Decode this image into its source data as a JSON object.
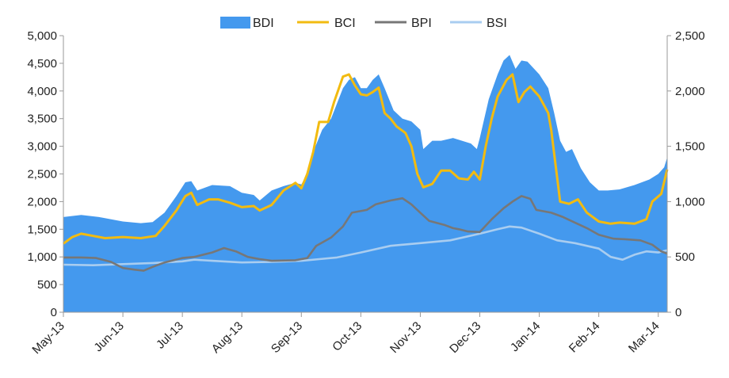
{
  "chart_data": {
    "type": "area",
    "legend": {
      "placement": "top-center",
      "items": [
        {
          "key": "BDI",
          "label": "BDI",
          "kind": "area",
          "color": "#4499ee"
        },
        {
          "key": "BCI",
          "label": "BCI",
          "kind": "line",
          "color": "#f2bb10"
        },
        {
          "key": "BPI",
          "label": "BPI",
          "kind": "line",
          "color": "#777777"
        },
        {
          "key": "BSI",
          "label": "BSI",
          "kind": "line",
          "color": "#a9cdf0"
        }
      ]
    },
    "x_axis": {
      "range": [
        0,
        10.15
      ],
      "ticks": [
        {
          "pos": 0,
          "label": "May-13"
        },
        {
          "pos": 1,
          "label": "Jun-13"
        },
        {
          "pos": 2,
          "label": "Jul-13"
        },
        {
          "pos": 3,
          "label": "Aug-13"
        },
        {
          "pos": 4,
          "label": "Sep-13"
        },
        {
          "pos": 5,
          "label": "Oct-13"
        },
        {
          "pos": 6,
          "label": "Nov-13"
        },
        {
          "pos": 7,
          "label": "Dec-13"
        },
        {
          "pos": 8,
          "label": "Jan-14"
        },
        {
          "pos": 9,
          "label": "Feb-14"
        },
        {
          "pos": 10,
          "label": "Mar-14"
        }
      ]
    },
    "y_left": {
      "range": [
        0,
        5000
      ],
      "ticks": [
        0,
        500,
        1000,
        1500,
        2000,
        2500,
        3000,
        3500,
        4000,
        4500,
        5000
      ],
      "tick_labels": [
        "0",
        "500",
        "1,000",
        "1,500",
        "2,000",
        "2,500",
        "3,000",
        "3,500",
        "4,000",
        "4,500",
        "5,000"
      ]
    },
    "y_right": {
      "range": [
        0,
        2500
      ],
      "ticks": [
        0,
        500,
        1000,
        1500,
        2000,
        2500
      ],
      "tick_labels": [
        "0",
        "500",
        "1,000",
        "1,500",
        "2,000",
        "2,500"
      ]
    },
    "series": [
      {
        "name": "BDI",
        "axis": "left",
        "points": [
          [
            0,
            1720
          ],
          [
            0.3,
            1760
          ],
          [
            0.6,
            1720
          ],
          [
            1,
            1640
          ],
          [
            1.3,
            1610
          ],
          [
            1.5,
            1630
          ],
          [
            1.7,
            1800
          ],
          [
            1.9,
            2100
          ],
          [
            2.05,
            2350
          ],
          [
            2.15,
            2370
          ],
          [
            2.25,
            2200
          ],
          [
            2.5,
            2300
          ],
          [
            2.8,
            2280
          ],
          [
            3,
            2160
          ],
          [
            3.2,
            2120
          ],
          [
            3.3,
            2020
          ],
          [
            3.5,
            2200
          ],
          [
            3.7,
            2280
          ],
          [
            3.9,
            2340
          ],
          [
            4,
            2310
          ],
          [
            4.1,
            2500
          ],
          [
            4.2,
            2900
          ],
          [
            4.35,
            3300
          ],
          [
            4.5,
            3500
          ],
          [
            4.7,
            4050
          ],
          [
            4.8,
            4200
          ],
          [
            4.9,
            4250
          ],
          [
            5,
            4050
          ],
          [
            5.1,
            4050
          ],
          [
            5.2,
            4200
          ],
          [
            5.3,
            4300
          ],
          [
            5.4,
            4050
          ],
          [
            5.55,
            3650
          ],
          [
            5.7,
            3500
          ],
          [
            5.85,
            3450
          ],
          [
            6,
            3300
          ],
          [
            6.05,
            2950
          ],
          [
            6.2,
            3100
          ],
          [
            6.35,
            3100
          ],
          [
            6.55,
            3150
          ],
          [
            6.7,
            3100
          ],
          [
            6.85,
            3050
          ],
          [
            6.95,
            2950
          ],
          [
            7,
            3150
          ],
          [
            7.15,
            3850
          ],
          [
            7.3,
            4300
          ],
          [
            7.4,
            4550
          ],
          [
            7.5,
            4650
          ],
          [
            7.6,
            4400
          ],
          [
            7.7,
            4550
          ],
          [
            7.8,
            4530
          ],
          [
            8,
            4300
          ],
          [
            8.15,
            4050
          ],
          [
            8.25,
            3600
          ],
          [
            8.35,
            3100
          ],
          [
            8.45,
            2900
          ],
          [
            8.55,
            2950
          ],
          [
            8.7,
            2600
          ],
          [
            8.85,
            2350
          ],
          [
            9,
            2200
          ],
          [
            9.15,
            2200
          ],
          [
            9.35,
            2220
          ],
          [
            9.6,
            2300
          ],
          [
            9.85,
            2400
          ],
          [
            10,
            2500
          ],
          [
            10.1,
            2620
          ],
          [
            10.15,
            2800
          ]
        ]
      },
      {
        "name": "BCI",
        "axis": "right",
        "points": [
          [
            0,
            620
          ],
          [
            0.15,
            680
          ],
          [
            0.3,
            710
          ],
          [
            0.5,
            690
          ],
          [
            0.7,
            670
          ],
          [
            1,
            680
          ],
          [
            1.3,
            670
          ],
          [
            1.55,
            690
          ],
          [
            1.7,
            780
          ],
          [
            1.9,
            920
          ],
          [
            2.05,
            1050
          ],
          [
            2.15,
            1080
          ],
          [
            2.25,
            970
          ],
          [
            2.45,
            1020
          ],
          [
            2.6,
            1020
          ],
          [
            2.8,
            990
          ],
          [
            3,
            950
          ],
          [
            3.2,
            960
          ],
          [
            3.3,
            920
          ],
          [
            3.5,
            970
          ],
          [
            3.7,
            1100
          ],
          [
            3.9,
            1170
          ],
          [
            4,
            1120
          ],
          [
            4.1,
            1250
          ],
          [
            4.2,
            1450
          ],
          [
            4.3,
            1720
          ],
          [
            4.45,
            1720
          ],
          [
            4.55,
            1900
          ],
          [
            4.7,
            2130
          ],
          [
            4.8,
            2150
          ],
          [
            4.9,
            2050
          ],
          [
            5,
            1970
          ],
          [
            5.1,
            1960
          ],
          [
            5.2,
            1990
          ],
          [
            5.3,
            2030
          ],
          [
            5.4,
            1800
          ],
          [
            5.5,
            1750
          ],
          [
            5.6,
            1680
          ],
          [
            5.75,
            1620
          ],
          [
            5.85,
            1500
          ],
          [
            5.95,
            1250
          ],
          [
            6.05,
            1130
          ],
          [
            6.2,
            1160
          ],
          [
            6.35,
            1280
          ],
          [
            6.5,
            1280
          ],
          [
            6.65,
            1210
          ],
          [
            6.8,
            1200
          ],
          [
            6.9,
            1270
          ],
          [
            7,
            1200
          ],
          [
            7.1,
            1500
          ],
          [
            7.2,
            1750
          ],
          [
            7.3,
            1950
          ],
          [
            7.45,
            2100
          ],
          [
            7.55,
            2150
          ],
          [
            7.65,
            1900
          ],
          [
            7.75,
            1990
          ],
          [
            7.85,
            2040
          ],
          [
            8,
            1950
          ],
          [
            8.15,
            1800
          ],
          [
            8.2,
            1650
          ],
          [
            8.35,
            1000
          ],
          [
            8.5,
            980
          ],
          [
            8.65,
            1020
          ],
          [
            8.8,
            900
          ],
          [
            9,
            820
          ],
          [
            9.2,
            800
          ],
          [
            9.35,
            810
          ],
          [
            9.6,
            800
          ],
          [
            9.8,
            840
          ],
          [
            9.9,
            1000
          ],
          [
            10.05,
            1070
          ],
          [
            10.15,
            1290
          ]
        ]
      },
      {
        "name": "BPI",
        "axis": "left",
        "points": [
          [
            0,
            990
          ],
          [
            0.3,
            990
          ],
          [
            0.55,
            980
          ],
          [
            0.8,
            910
          ],
          [
            1,
            800
          ],
          [
            1.2,
            770
          ],
          [
            1.35,
            750
          ],
          [
            1.5,
            820
          ],
          [
            1.7,
            900
          ],
          [
            2,
            980
          ],
          [
            2.2,
            1000
          ],
          [
            2.5,
            1080
          ],
          [
            2.7,
            1160
          ],
          [
            2.9,
            1100
          ],
          [
            3.1,
            1000
          ],
          [
            3.3,
            960
          ],
          [
            3.5,
            930
          ],
          [
            3.9,
            940
          ],
          [
            4.1,
            980
          ],
          [
            4.25,
            1200
          ],
          [
            4.5,
            1350
          ],
          [
            4.7,
            1550
          ],
          [
            4.85,
            1800
          ],
          [
            5.1,
            1850
          ],
          [
            5.25,
            1950
          ],
          [
            5.5,
            2020
          ],
          [
            5.7,
            2060
          ],
          [
            5.85,
            1950
          ],
          [
            6,
            1800
          ],
          [
            6.15,
            1650
          ],
          [
            6.4,
            1580
          ],
          [
            6.55,
            1520
          ],
          [
            6.65,
            1500
          ],
          [
            6.8,
            1460
          ],
          [
            7,
            1450
          ],
          [
            7.2,
            1680
          ],
          [
            7.4,
            1880
          ],
          [
            7.55,
            2000
          ],
          [
            7.7,
            2100
          ],
          [
            7.85,
            2050
          ],
          [
            7.95,
            1850
          ],
          [
            8.2,
            1800
          ],
          [
            8.4,
            1720
          ],
          [
            8.6,
            1620
          ],
          [
            8.8,
            1520
          ],
          [
            9,
            1400
          ],
          [
            9.25,
            1330
          ],
          [
            9.45,
            1320
          ],
          [
            9.7,
            1300
          ],
          [
            9.9,
            1220
          ],
          [
            10.05,
            1100
          ],
          [
            10.15,
            1060
          ]
        ]
      },
      {
        "name": "BSI",
        "axis": "left",
        "points": [
          [
            0,
            860
          ],
          [
            0.5,
            850
          ],
          [
            1,
            870
          ],
          [
            1.5,
            890
          ],
          [
            2,
            920
          ],
          [
            2.2,
            950
          ],
          [
            2.5,
            930
          ],
          [
            3,
            900
          ],
          [
            3.5,
            910
          ],
          [
            4,
            930
          ],
          [
            4.3,
            960
          ],
          [
            4.6,
            990
          ],
          [
            5,
            1080
          ],
          [
            5.5,
            1200
          ],
          [
            6,
            1250
          ],
          [
            6.5,
            1300
          ],
          [
            7,
            1420
          ],
          [
            7.3,
            1500
          ],
          [
            7.5,
            1550
          ],
          [
            7.7,
            1530
          ],
          [
            8,
            1420
          ],
          [
            8.3,
            1300
          ],
          [
            8.6,
            1250
          ],
          [
            9,
            1150
          ],
          [
            9.2,
            1000
          ],
          [
            9.4,
            950
          ],
          [
            9.6,
            1040
          ],
          [
            9.8,
            1100
          ],
          [
            10,
            1080
          ],
          [
            10.15,
            1120
          ]
        ]
      }
    ]
  }
}
